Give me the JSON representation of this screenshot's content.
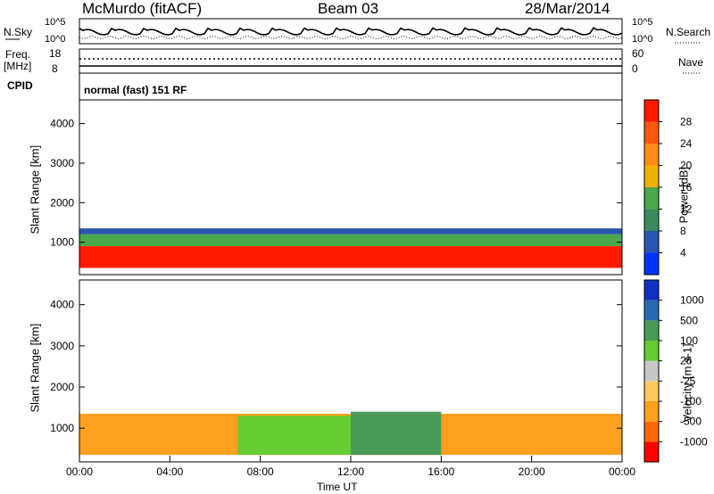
{
  "header": {
    "station": "McMurdo (fitACF)",
    "beam": "Beam 03",
    "date": "28/Mar/2014"
  },
  "top_panels": {
    "nsky_label": "N.Sky",
    "nsky_ticks": [
      "10^5",
      "10^0"
    ],
    "nsearch_label": "N.Search",
    "nsearch_ticks": [
      "10^5",
      "10^0"
    ],
    "freq_label": "Freq.",
    "freq_unit": "[MHz]",
    "freq_ticks": [
      "18",
      "8"
    ],
    "nave_label": "Nave",
    "nave_ticks": [
      "60",
      "0"
    ],
    "cpid_label": "CPID",
    "cpid_value": "normal (fast) 151 RF"
  },
  "chart_data": [
    {
      "type": "heatmap",
      "name": "power",
      "ylabel": "Slant Range [km]",
      "yticks": [
        "4000",
        "3000",
        "2000",
        "1000"
      ],
      "ylim": [
        180,
        4600
      ],
      "xlim": [
        "00:00",
        "24:00"
      ],
      "colorbar": {
        "label": "Power [dB]",
        "ticks": [
          "28",
          "24",
          "20",
          "16",
          "12",
          "8",
          "4"
        ],
        "colors": [
          "#0033ff",
          "#2a55b0",
          "#3c8a5e",
          "#4aa84a",
          "#f0b000",
          "#ff8c1a",
          "#ff5a10",
          "#ff1a00"
        ]
      },
      "layers": [
        {
          "from_hour": 0,
          "to_hour": 24,
          "range_low_km": 350,
          "range_high_km": 900,
          "level_db": 28
        },
        {
          "from_hour": 0,
          "to_hour": 24,
          "range_low_km": 900,
          "range_high_km": 1200,
          "level_db": 16
        },
        {
          "from_hour": 0,
          "to_hour": 24,
          "range_low_km": 1200,
          "range_high_km": 1350,
          "level_db": 6
        }
      ]
    },
    {
      "type": "heatmap",
      "name": "velocity",
      "ylabel": "Slant Range [km]",
      "yticks": [
        "4000",
        "3000",
        "2000",
        "1000"
      ],
      "ylim": [
        180,
        4600
      ],
      "xlim": [
        "00:00",
        "24:00"
      ],
      "colorbar": {
        "label": "Velocity [m s-1]",
        "ticks": [
          "1000",
          "500",
          "100",
          "25",
          "-25",
          "-100",
          "-500",
          "-1000"
        ],
        "colors": [
          "#ff0000",
          "#ff6a00",
          "#ffa020",
          "#ffc860",
          "#c8c8c8",
          "#66cc33",
          "#4a9a5a",
          "#2a6ab0",
          "#1030c0"
        ]
      },
      "layers": [
        {
          "from_hour": 0,
          "to_hour": 24,
          "range_low_km": 350,
          "range_high_km": 1350,
          "level_ms": -100
        },
        {
          "from_hour": 7,
          "to_hour": 12,
          "range_low_km": 350,
          "range_high_km": 1300,
          "level_ms": 100
        },
        {
          "from_hour": 12,
          "to_hour": 16,
          "range_low_km": 350,
          "range_high_km": 1400,
          "level_ms": 300
        }
      ]
    }
  ],
  "x_axis": {
    "ticks": [
      "00:00",
      "04:00",
      "08:00",
      "12:00",
      "16:00",
      "20:00",
      "00:00"
    ],
    "label": "Time UT"
  }
}
